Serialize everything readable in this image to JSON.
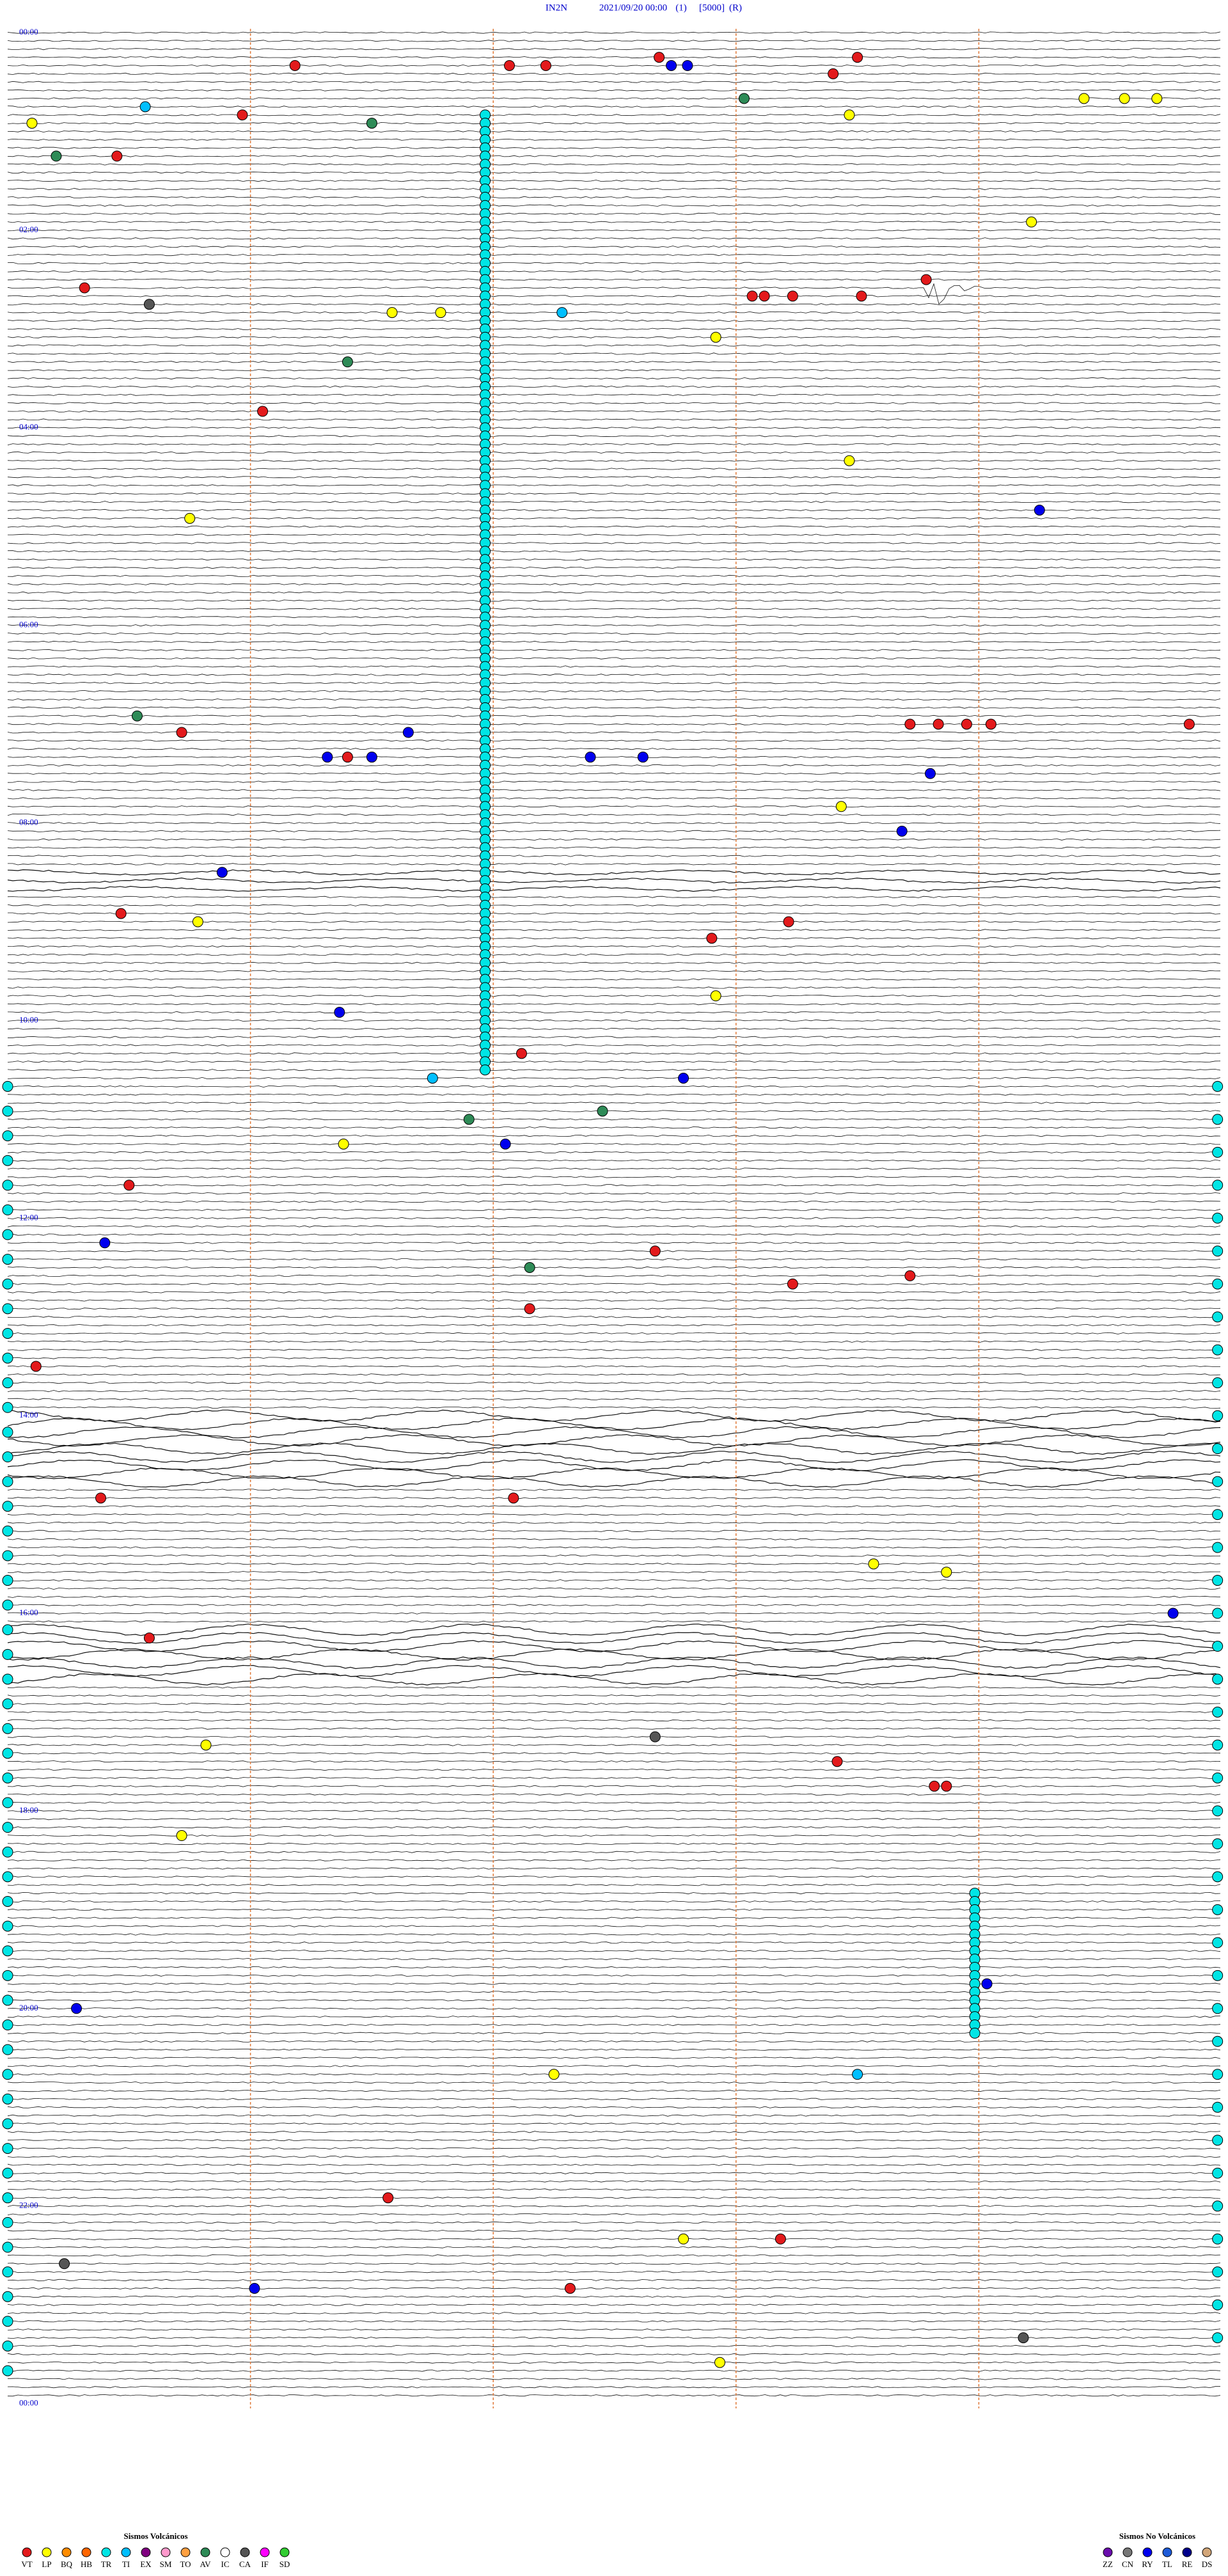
{
  "header": {
    "station": "IN2N",
    "datetime": "2021/09/20 00:00",
    "channel": "(1)",
    "scale": "[5000]",
    "mode": "(R)"
  },
  "hour_labels": [
    "00:00",
    "02:00",
    "04:00",
    "06:00",
    "08:00",
    "10:00",
    "12:00",
    "14:00",
    "16:00",
    "18:00",
    "20:00",
    "22:00",
    "00:00"
  ],
  "legend_volcanic": {
    "title": "Sismos Volcánicos",
    "types": [
      {
        "code": "VT",
        "color": "#e31a1c"
      },
      {
        "code": "LP",
        "color": "#ffff00"
      },
      {
        "code": "BQ",
        "color": "#ff8c00"
      },
      {
        "code": "HB",
        "color": "#ff6600"
      },
      {
        "code": "TR",
        "color": "#00e5e5"
      },
      {
        "code": "TI",
        "color": "#00bfff"
      },
      {
        "code": "EX",
        "color": "#800080"
      },
      {
        "code": "SM",
        "color": "#ff99cc"
      },
      {
        "code": "TO",
        "color": "#ffa040"
      },
      {
        "code": "AV",
        "color": "#2e8b57"
      },
      {
        "code": "IC",
        "color": "#ffffff"
      },
      {
        "code": "CA",
        "color": "#555555"
      },
      {
        "code": "IF",
        "color": "#ff00ff"
      },
      {
        "code": "SD",
        "color": "#32cd32"
      }
    ]
  },
  "legend_non_volcanic": {
    "title": "Sismos No Volcánicos",
    "types": [
      {
        "code": "ZZ",
        "color": "#6a0dad"
      },
      {
        "code": "CN",
        "color": "#777777"
      },
      {
        "code": "RY",
        "color": "#0000ee"
      },
      {
        "code": "TL",
        "color": "#1e5bd8"
      },
      {
        "code": "RE",
        "color": "#00008b"
      },
      {
        "code": "DS",
        "color": "#d2a679"
      }
    ]
  },
  "events": [
    {
      "line": 4,
      "second": 71,
      "type": "VT"
    },
    {
      "line": 4,
      "second": 124,
      "type": "VT"
    },
    {
      "line": 4,
      "second": 133,
      "type": "VT"
    },
    {
      "line": 3,
      "second": 161,
      "type": "VT"
    },
    {
      "line": 4,
      "second": 164,
      "type": "RY"
    },
    {
      "line": 4,
      "second": 168,
      "type": "RY"
    },
    {
      "line": 5,
      "second": 204,
      "type": "VT"
    },
    {
      "line": 3,
      "second": 210,
      "type": "VT"
    },
    {
      "line": 8,
      "second": 182,
      "type": "AV"
    },
    {
      "line": 8,
      "second": 266,
      "type": "LP"
    },
    {
      "line": 8,
      "second": 276,
      "type": "LP"
    },
    {
      "line": 8,
      "second": 284,
      "type": "LP"
    },
    {
      "line": 9,
      "second": 34,
      "type": "TI"
    },
    {
      "line": 10,
      "second": 58,
      "type": "VT"
    },
    {
      "line": 11,
      "second": 90,
      "type": "AV"
    },
    {
      "line": 10,
      "second": 208,
      "type": "LP"
    },
    {
      "line": 11,
      "second": 6,
      "type": "LP"
    },
    {
      "line": 15,
      "second": 12,
      "type": "AV"
    },
    {
      "line": 15,
      "second": 27,
      "type": "VT"
    },
    {
      "line": 23,
      "second": 253,
      "type": "LP"
    },
    {
      "line": 30,
      "second": 227,
      "type": "VT"
    },
    {
      "line": 31,
      "second": 19,
      "type": "VT"
    },
    {
      "line": 32,
      "second": 184,
      "type": "VT"
    },
    {
      "line": 32,
      "second": 187,
      "type": "VT"
    },
    {
      "line": 32,
      "second": 194,
      "type": "VT"
    },
    {
      "line": 32,
      "second": 211,
      "type": "VT"
    },
    {
      "line": 33,
      "second": 35,
      "type": "CA"
    },
    {
      "line": 34,
      "second": 95,
      "type": "LP"
    },
    {
      "line": 34,
      "second": 107,
      "type": "LP"
    },
    {
      "line": 34,
      "second": 137,
      "type": "TI"
    },
    {
      "line": 37,
      "second": 175,
      "type": "LP"
    },
    {
      "line": 40,
      "second": 84,
      "type": "AV"
    },
    {
      "line": 46,
      "second": 63,
      "type": "VT"
    },
    {
      "line": 52,
      "second": 208,
      "type": "LP"
    },
    {
      "line": 58,
      "second": 255,
      "type": "RY"
    },
    {
      "line": 59,
      "second": 45,
      "type": "LP"
    },
    {
      "line": 83,
      "second": 32,
      "type": "AV"
    },
    {
      "line": 85,
      "second": 43,
      "type": "VT"
    },
    {
      "line": 85,
      "second": 99,
      "type": "RY"
    },
    {
      "line": 88,
      "second": 79,
      "type": "RY"
    },
    {
      "line": 88,
      "second": 84,
      "type": "VT"
    },
    {
      "line": 88,
      "second": 90,
      "type": "RY"
    },
    {
      "line": 88,
      "second": 144,
      "type": "RY"
    },
    {
      "line": 88,
      "second": 157,
      "type": "RY"
    },
    {
      "line": 84,
      "second": 223,
      "type": "VT"
    },
    {
      "line": 84,
      "second": 230,
      "type": "VT"
    },
    {
      "line": 84,
      "second": 237,
      "type": "VT"
    },
    {
      "line": 84,
      "second": 243,
      "type": "VT"
    },
    {
      "line": 84,
      "second": 292,
      "type": "VT"
    },
    {
      "line": 90,
      "second": 228,
      "type": "RY"
    },
    {
      "line": 94,
      "second": 206,
      "type": "LP"
    },
    {
      "line": 97,
      "second": 221,
      "type": "RY"
    },
    {
      "line": 102,
      "second": 53,
      "type": "RY"
    },
    {
      "line": 107,
      "second": 28,
      "type": "VT"
    },
    {
      "line": 108,
      "second": 47,
      "type": "LP"
    },
    {
      "line": 108,
      "second": 193,
      "type": "VT"
    },
    {
      "line": 110,
      "second": 174,
      "type": "VT"
    },
    {
      "line": 117,
      "second": 175,
      "type": "LP"
    },
    {
      "line": 119,
      "second": 82,
      "type": "RY"
    },
    {
      "line": 124,
      "second": 127,
      "type": "VT"
    },
    {
      "line": 127,
      "second": 105,
      "type": "TI"
    },
    {
      "line": 127,
      "second": 167,
      "type": "RY"
    },
    {
      "line": 132,
      "second": 114,
      "type": "AV"
    },
    {
      "line": 135,
      "second": 123,
      "type": "RY"
    },
    {
      "line": 131,
      "second": 147,
      "type": "AV"
    },
    {
      "line": 135,
      "second": 83,
      "type": "LP"
    },
    {
      "line": 140,
      "second": 30,
      "type": "VT"
    },
    {
      "line": 147,
      "second": 24,
      "type": "RY"
    },
    {
      "line": 150,
      "second": 129,
      "type": "AV"
    },
    {
      "line": 148,
      "second": 160,
      "type": "VT"
    },
    {
      "line": 152,
      "second": 194,
      "type": "VT"
    },
    {
      "line": 151,
      "second": 223,
      "type": "VT"
    },
    {
      "line": 155,
      "second": 129,
      "type": "VT"
    },
    {
      "line": 162,
      "second": 7,
      "type": "VT"
    },
    {
      "line": 178,
      "second": 23,
      "type": "VT"
    },
    {
      "line": 178,
      "second": 125,
      "type": "VT"
    },
    {
      "line": 186,
      "second": 214,
      "type": "LP"
    },
    {
      "line": 187,
      "second": 232,
      "type": "LP"
    },
    {
      "line": 192,
      "second": 288,
      "type": "RY"
    },
    {
      "line": 195,
      "second": 35,
      "type": "VT"
    },
    {
      "line": 207,
      "second": 160,
      "type": "CA"
    },
    {
      "line": 208,
      "second": 49,
      "type": "LP"
    },
    {
      "line": 210,
      "second": 205,
      "type": "VT"
    },
    {
      "line": 213,
      "second": 229,
      "type": "VT"
    },
    {
      "line": 213,
      "second": 232,
      "type": "VT"
    },
    {
      "line": 219,
      "second": 43,
      "type": "LP"
    },
    {
      "line": 240,
      "second": 17,
      "type": "RY"
    },
    {
      "line": 237,
      "second": 242,
      "type": "RY"
    },
    {
      "line": 248,
      "second": 135,
      "type": "LP"
    },
    {
      "line": 248,
      "second": 210,
      "type": "TI"
    },
    {
      "line": 263,
      "second": 94,
      "type": "VT"
    },
    {
      "line": 268,
      "second": 167,
      "type": "LP"
    },
    {
      "line": 268,
      "second": 191,
      "type": "VT"
    },
    {
      "line": 274,
      "second": 61,
      "type": "RY"
    },
    {
      "line": 274,
      "second": 139,
      "type": "VT"
    },
    {
      "line": 283,
      "second": 176,
      "type": "LP"
    },
    {
      "line": 271,
      "second": 14,
      "type": "CA"
    },
    {
      "line": 280,
      "second": 251,
      "type": "CA"
    }
  ],
  "tremor_runs": [
    {
      "type": "TR",
      "second": 118,
      "first_line": 10,
      "last_line": 126,
      "step": 1
    },
    {
      "type": "TR",
      "second": 239,
      "first_line": 226,
      "last_line": 243,
      "step": 1
    },
    {
      "type": "TR",
      "second": 0,
      "first_line": 128,
      "last_line": 286,
      "step": 3
    },
    {
      "type": "TR",
      "second": 299,
      "first_line": 128,
      "last_line": 280,
      "step": 4
    }
  ]
}
